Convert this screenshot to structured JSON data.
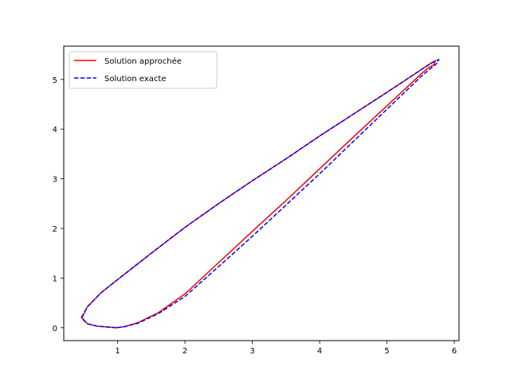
{
  "chart_data": {
    "type": "line",
    "title": "",
    "xlabel": "",
    "ylabel": "",
    "xlim": [
      0.2,
      6.07
    ],
    "ylim": [
      -0.26,
      5.67
    ],
    "grid": false,
    "legend_position": "top-left",
    "x_ticks": [
      "1",
      "2",
      "3",
      "4",
      "5",
      "6"
    ],
    "y_ticks": [
      "0",
      "1",
      "2",
      "3",
      "4",
      "5"
    ],
    "series": [
      {
        "name": "Solution approchée",
        "color": "#ff0000",
        "style": "solid",
        "points": [
          [
            0.98,
            0.0
          ],
          [
            0.7,
            0.03
          ],
          [
            0.55,
            0.08
          ],
          [
            0.47,
            0.2
          ],
          [
            0.55,
            0.42
          ],
          [
            0.75,
            0.7
          ],
          [
            1.0,
            0.97
          ],
          [
            1.5,
            1.5
          ],
          [
            2.0,
            2.02
          ],
          [
            2.5,
            2.5
          ],
          [
            3.0,
            2.96
          ],
          [
            3.5,
            3.4
          ],
          [
            4.0,
            3.86
          ],
          [
            4.5,
            4.3
          ],
          [
            5.0,
            4.74
          ],
          [
            5.4,
            5.1
          ],
          [
            5.62,
            5.3
          ],
          [
            5.72,
            5.38
          ],
          [
            5.7,
            5.3
          ],
          [
            5.6,
            5.22
          ],
          [
            5.5,
            5.1
          ],
          [
            5.0,
            4.47
          ],
          [
            4.5,
            3.84
          ],
          [
            4.0,
            3.2
          ],
          [
            3.5,
            2.56
          ],
          [
            3.0,
            1.94
          ],
          [
            2.5,
            1.31
          ],
          [
            2.0,
            0.68
          ],
          [
            1.6,
            0.3
          ],
          [
            1.3,
            0.1
          ],
          [
            1.1,
            0.02
          ],
          [
            0.98,
            0.0
          ]
        ]
      },
      {
        "name": "Solution exacte",
        "color": "#0000ff",
        "style": "dashed",
        "points": [
          [
            0.98,
            0.0
          ],
          [
            0.7,
            0.03
          ],
          [
            0.55,
            0.08
          ],
          [
            0.46,
            0.2
          ],
          [
            0.55,
            0.42
          ],
          [
            0.75,
            0.7
          ],
          [
            1.0,
            0.97
          ],
          [
            1.5,
            1.5
          ],
          [
            2.0,
            2.02
          ],
          [
            2.5,
            2.5
          ],
          [
            3.0,
            2.96
          ],
          [
            3.5,
            3.4
          ],
          [
            4.0,
            3.86
          ],
          [
            4.5,
            4.3
          ],
          [
            5.0,
            4.74
          ],
          [
            5.4,
            5.1
          ],
          [
            5.65,
            5.32
          ],
          [
            5.77,
            5.4
          ],
          [
            5.74,
            5.32
          ],
          [
            5.6,
            5.17
          ],
          [
            5.5,
            5.05
          ],
          [
            5.0,
            4.4
          ],
          [
            4.5,
            3.75
          ],
          [
            4.0,
            3.1
          ],
          [
            3.5,
            2.47
          ],
          [
            3.0,
            1.84
          ],
          [
            2.5,
            1.23
          ],
          [
            2.0,
            0.63
          ],
          [
            1.6,
            0.28
          ],
          [
            1.3,
            0.09
          ],
          [
            1.1,
            0.02
          ],
          [
            0.98,
            0.0
          ]
        ]
      }
    ]
  }
}
